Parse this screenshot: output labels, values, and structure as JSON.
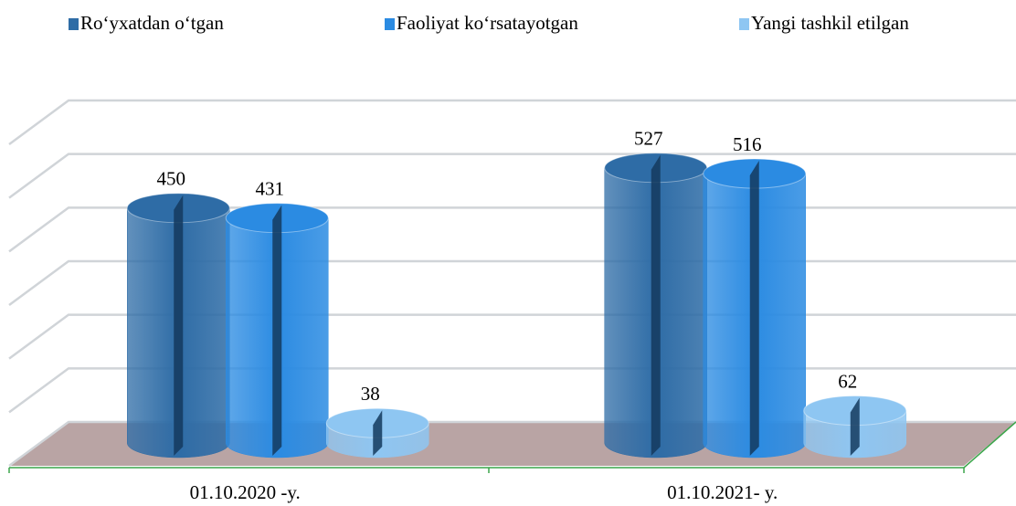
{
  "chart_data": {
    "type": "bar3d",
    "categories": [
      "01.10.2020 -y.",
      "01.10.2021- y."
    ],
    "series": [
      {
        "name": "Ro‘yxatdan o‘tgan",
        "color": "#2e6ca6",
        "values": [
          450,
          527
        ]
      },
      {
        "name": "Faoliyat ko‘rsatayotgan",
        "color": "#2b8be2",
        "values": [
          431,
          516
        ]
      },
      {
        "name": "Yangi tashkil etilgan",
        "color": "#8ec6f2",
        "values": [
          38,
          62
        ]
      }
    ],
    "ylim": [
      0,
      600
    ],
    "yticks": [
      0,
      100,
      200,
      300,
      400,
      500,
      600
    ],
    "grid": true
  }
}
